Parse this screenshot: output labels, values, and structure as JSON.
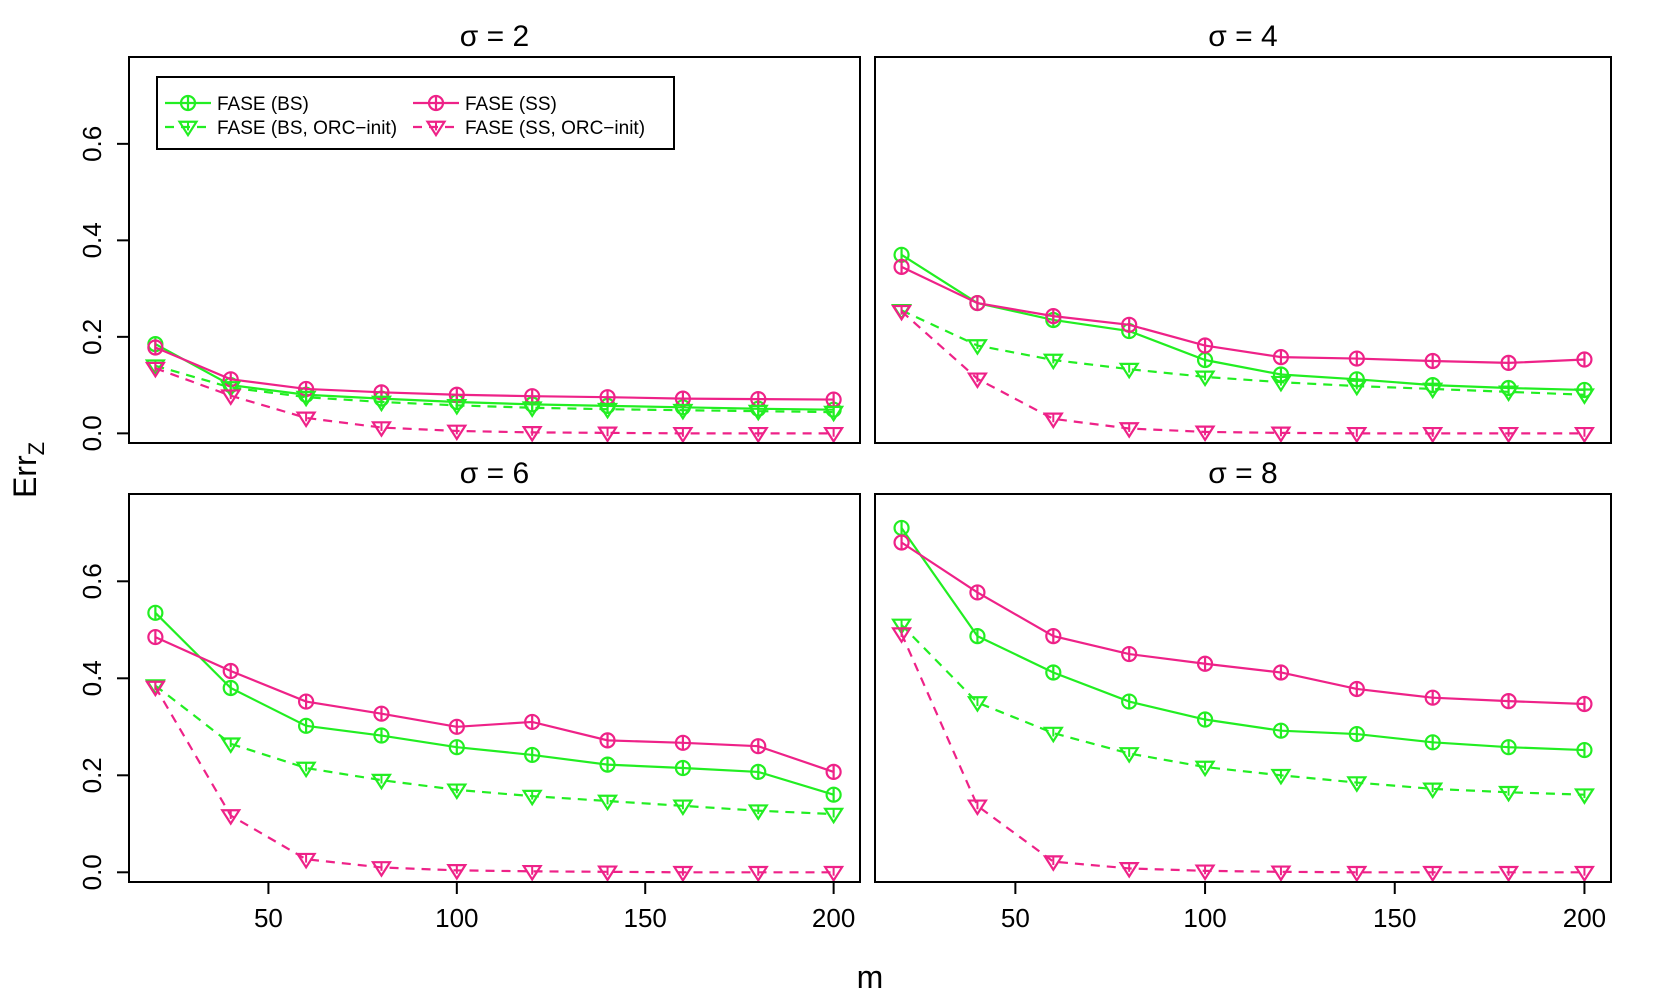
{
  "figure": {
    "xlabel": "m",
    "ylabel_main": "Err",
    "ylabel_sub": "Z"
  },
  "legend": [
    {
      "label": "FASE (BS)",
      "color": "#22ee22",
      "marker": "circle-bar",
      "dashed": false
    },
    {
      "label": "FASE (SS)",
      "color": "#ee2288",
      "marker": "circle-bar",
      "dashed": false
    },
    {
      "label": "FASE (BS, ORC−init)",
      "color": "#22ee22",
      "marker": "triangle-down",
      "dashed": true
    },
    {
      "label": "FASE (SS, ORC−init)",
      "color": "#ee2288",
      "marker": "triangle-down",
      "dashed": true
    }
  ],
  "chart_data": [
    {
      "type": "line",
      "title": "σ = 2",
      "xlim": [
        13,
        207
      ],
      "ylim": [
        -0.02,
        0.78
      ],
      "xticks": [
        50,
        100,
        150,
        200
      ],
      "yticks": [
        0.0,
        0.2,
        0.4,
        0.6
      ],
      "x": [
        20,
        40,
        60,
        80,
        100,
        120,
        140,
        160,
        180,
        200
      ],
      "series": [
        {
          "name": "FASE (BS)",
          "color": "#22ee22",
          "dashed": false,
          "marker": "circle-bar",
          "values": [
            0.185,
            0.1,
            0.08,
            0.072,
            0.065,
            0.06,
            0.057,
            0.054,
            0.051,
            0.049
          ]
        },
        {
          "name": "FASE (SS)",
          "color": "#ee2288",
          "dashed": false,
          "marker": "circle-bar",
          "values": [
            0.178,
            0.112,
            0.092,
            0.085,
            0.08,
            0.077,
            0.075,
            0.072,
            0.071,
            0.07
          ]
        },
        {
          "name": "FASE (BS, ORC−init)",
          "color": "#22ee22",
          "dashed": true,
          "marker": "triangle-down",
          "values": [
            0.14,
            0.095,
            0.075,
            0.065,
            0.058,
            0.053,
            0.05,
            0.048,
            0.046,
            0.044
          ]
        },
        {
          "name": "FASE (SS, ORC−init)",
          "color": "#ee2288",
          "dashed": true,
          "marker": "triangle-down",
          "values": [
            0.135,
            0.078,
            0.032,
            0.012,
            0.005,
            0.002,
            0.001,
            0.0,
            0.0,
            0.0
          ]
        }
      ]
    },
    {
      "type": "line",
      "title": "σ = 4",
      "xlim": [
        13,
        207
      ],
      "ylim": [
        -0.02,
        0.78
      ],
      "xticks": [
        50,
        100,
        150,
        200
      ],
      "yticks": [
        0.0,
        0.2,
        0.4,
        0.6
      ],
      "x": [
        20,
        40,
        60,
        80,
        100,
        120,
        140,
        160,
        180,
        200
      ],
      "series": [
        {
          "name": "FASE (BS)",
          "color": "#22ee22",
          "dashed": false,
          "marker": "circle-bar",
          "values": [
            0.37,
            0.27,
            0.235,
            0.212,
            0.152,
            0.122,
            0.112,
            0.1,
            0.094,
            0.09
          ]
        },
        {
          "name": "FASE (SS)",
          "color": "#ee2288",
          "dashed": false,
          "marker": "circle-bar",
          "values": [
            0.345,
            0.27,
            0.243,
            0.225,
            0.182,
            0.158,
            0.155,
            0.15,
            0.146,
            0.153
          ]
        },
        {
          "name": "FASE (BS, ORC−init)",
          "color": "#22ee22",
          "dashed": true,
          "marker": "triangle-down",
          "values": [
            0.255,
            0.182,
            0.152,
            0.133,
            0.117,
            0.106,
            0.098,
            0.092,
            0.086,
            0.08
          ]
        },
        {
          "name": "FASE (SS, ORC−init)",
          "color": "#ee2288",
          "dashed": true,
          "marker": "triangle-down",
          "values": [
            0.253,
            0.113,
            0.03,
            0.01,
            0.003,
            0.001,
            0.0,
            0.0,
            0.0,
            0.0
          ]
        }
      ]
    },
    {
      "type": "line",
      "title": "σ = 6",
      "xlim": [
        13,
        207
      ],
      "ylim": [
        -0.02,
        0.78
      ],
      "xticks": [
        50,
        100,
        150,
        200
      ],
      "yticks": [
        0.0,
        0.2,
        0.4,
        0.6
      ],
      "x": [
        20,
        40,
        60,
        80,
        100,
        120,
        140,
        160,
        180,
        200
      ],
      "series": [
        {
          "name": "FASE (BS)",
          "color": "#22ee22",
          "dashed": false,
          "marker": "circle-bar",
          "values": [
            0.535,
            0.38,
            0.302,
            0.282,
            0.258,
            0.242,
            0.222,
            0.215,
            0.207,
            0.16
          ]
        },
        {
          "name": "FASE (SS)",
          "color": "#ee2288",
          "dashed": false,
          "marker": "circle-bar",
          "values": [
            0.485,
            0.415,
            0.352,
            0.327,
            0.3,
            0.31,
            0.272,
            0.267,
            0.26,
            0.207
          ]
        },
        {
          "name": "FASE (BS, ORC−init)",
          "color": "#22ee22",
          "dashed": true,
          "marker": "triangle-down",
          "values": [
            0.385,
            0.265,
            0.215,
            0.19,
            0.17,
            0.157,
            0.147,
            0.137,
            0.127,
            0.12
          ]
        },
        {
          "name": "FASE (SS, ORC−init)",
          "color": "#ee2288",
          "dashed": true,
          "marker": "triangle-down",
          "values": [
            0.382,
            0.117,
            0.027,
            0.01,
            0.004,
            0.002,
            0.001,
            0.0,
            0.0,
            0.0
          ]
        }
      ]
    },
    {
      "type": "line",
      "title": "σ = 8",
      "xlim": [
        13,
        207
      ],
      "ylim": [
        -0.02,
        0.78
      ],
      "xticks": [
        50,
        100,
        150,
        200
      ],
      "yticks": [
        0.0,
        0.2,
        0.4,
        0.6
      ],
      "x": [
        20,
        40,
        60,
        80,
        100,
        120,
        140,
        160,
        180,
        200
      ],
      "series": [
        {
          "name": "FASE (BS)",
          "color": "#22ee22",
          "dashed": false,
          "marker": "circle-bar",
          "values": [
            0.71,
            0.487,
            0.412,
            0.352,
            0.315,
            0.292,
            0.285,
            0.268,
            0.258,
            0.252
          ]
        },
        {
          "name": "FASE (SS)",
          "color": "#ee2288",
          "dashed": false,
          "marker": "circle-bar",
          "values": [
            0.68,
            0.577,
            0.487,
            0.45,
            0.43,
            0.412,
            0.378,
            0.36,
            0.353,
            0.347
          ]
        },
        {
          "name": "FASE (BS, ORC−init)",
          "color": "#22ee22",
          "dashed": true,
          "marker": "triangle-down",
          "values": [
            0.51,
            0.35,
            0.287,
            0.245,
            0.217,
            0.2,
            0.185,
            0.172,
            0.165,
            0.16
          ]
        },
        {
          "name": "FASE (SS, ORC−init)",
          "color": "#ee2288",
          "dashed": true,
          "marker": "triangle-down",
          "values": [
            0.492,
            0.137,
            0.022,
            0.008,
            0.003,
            0.001,
            0.0,
            0.0,
            0.0,
            0.0
          ]
        }
      ]
    }
  ]
}
